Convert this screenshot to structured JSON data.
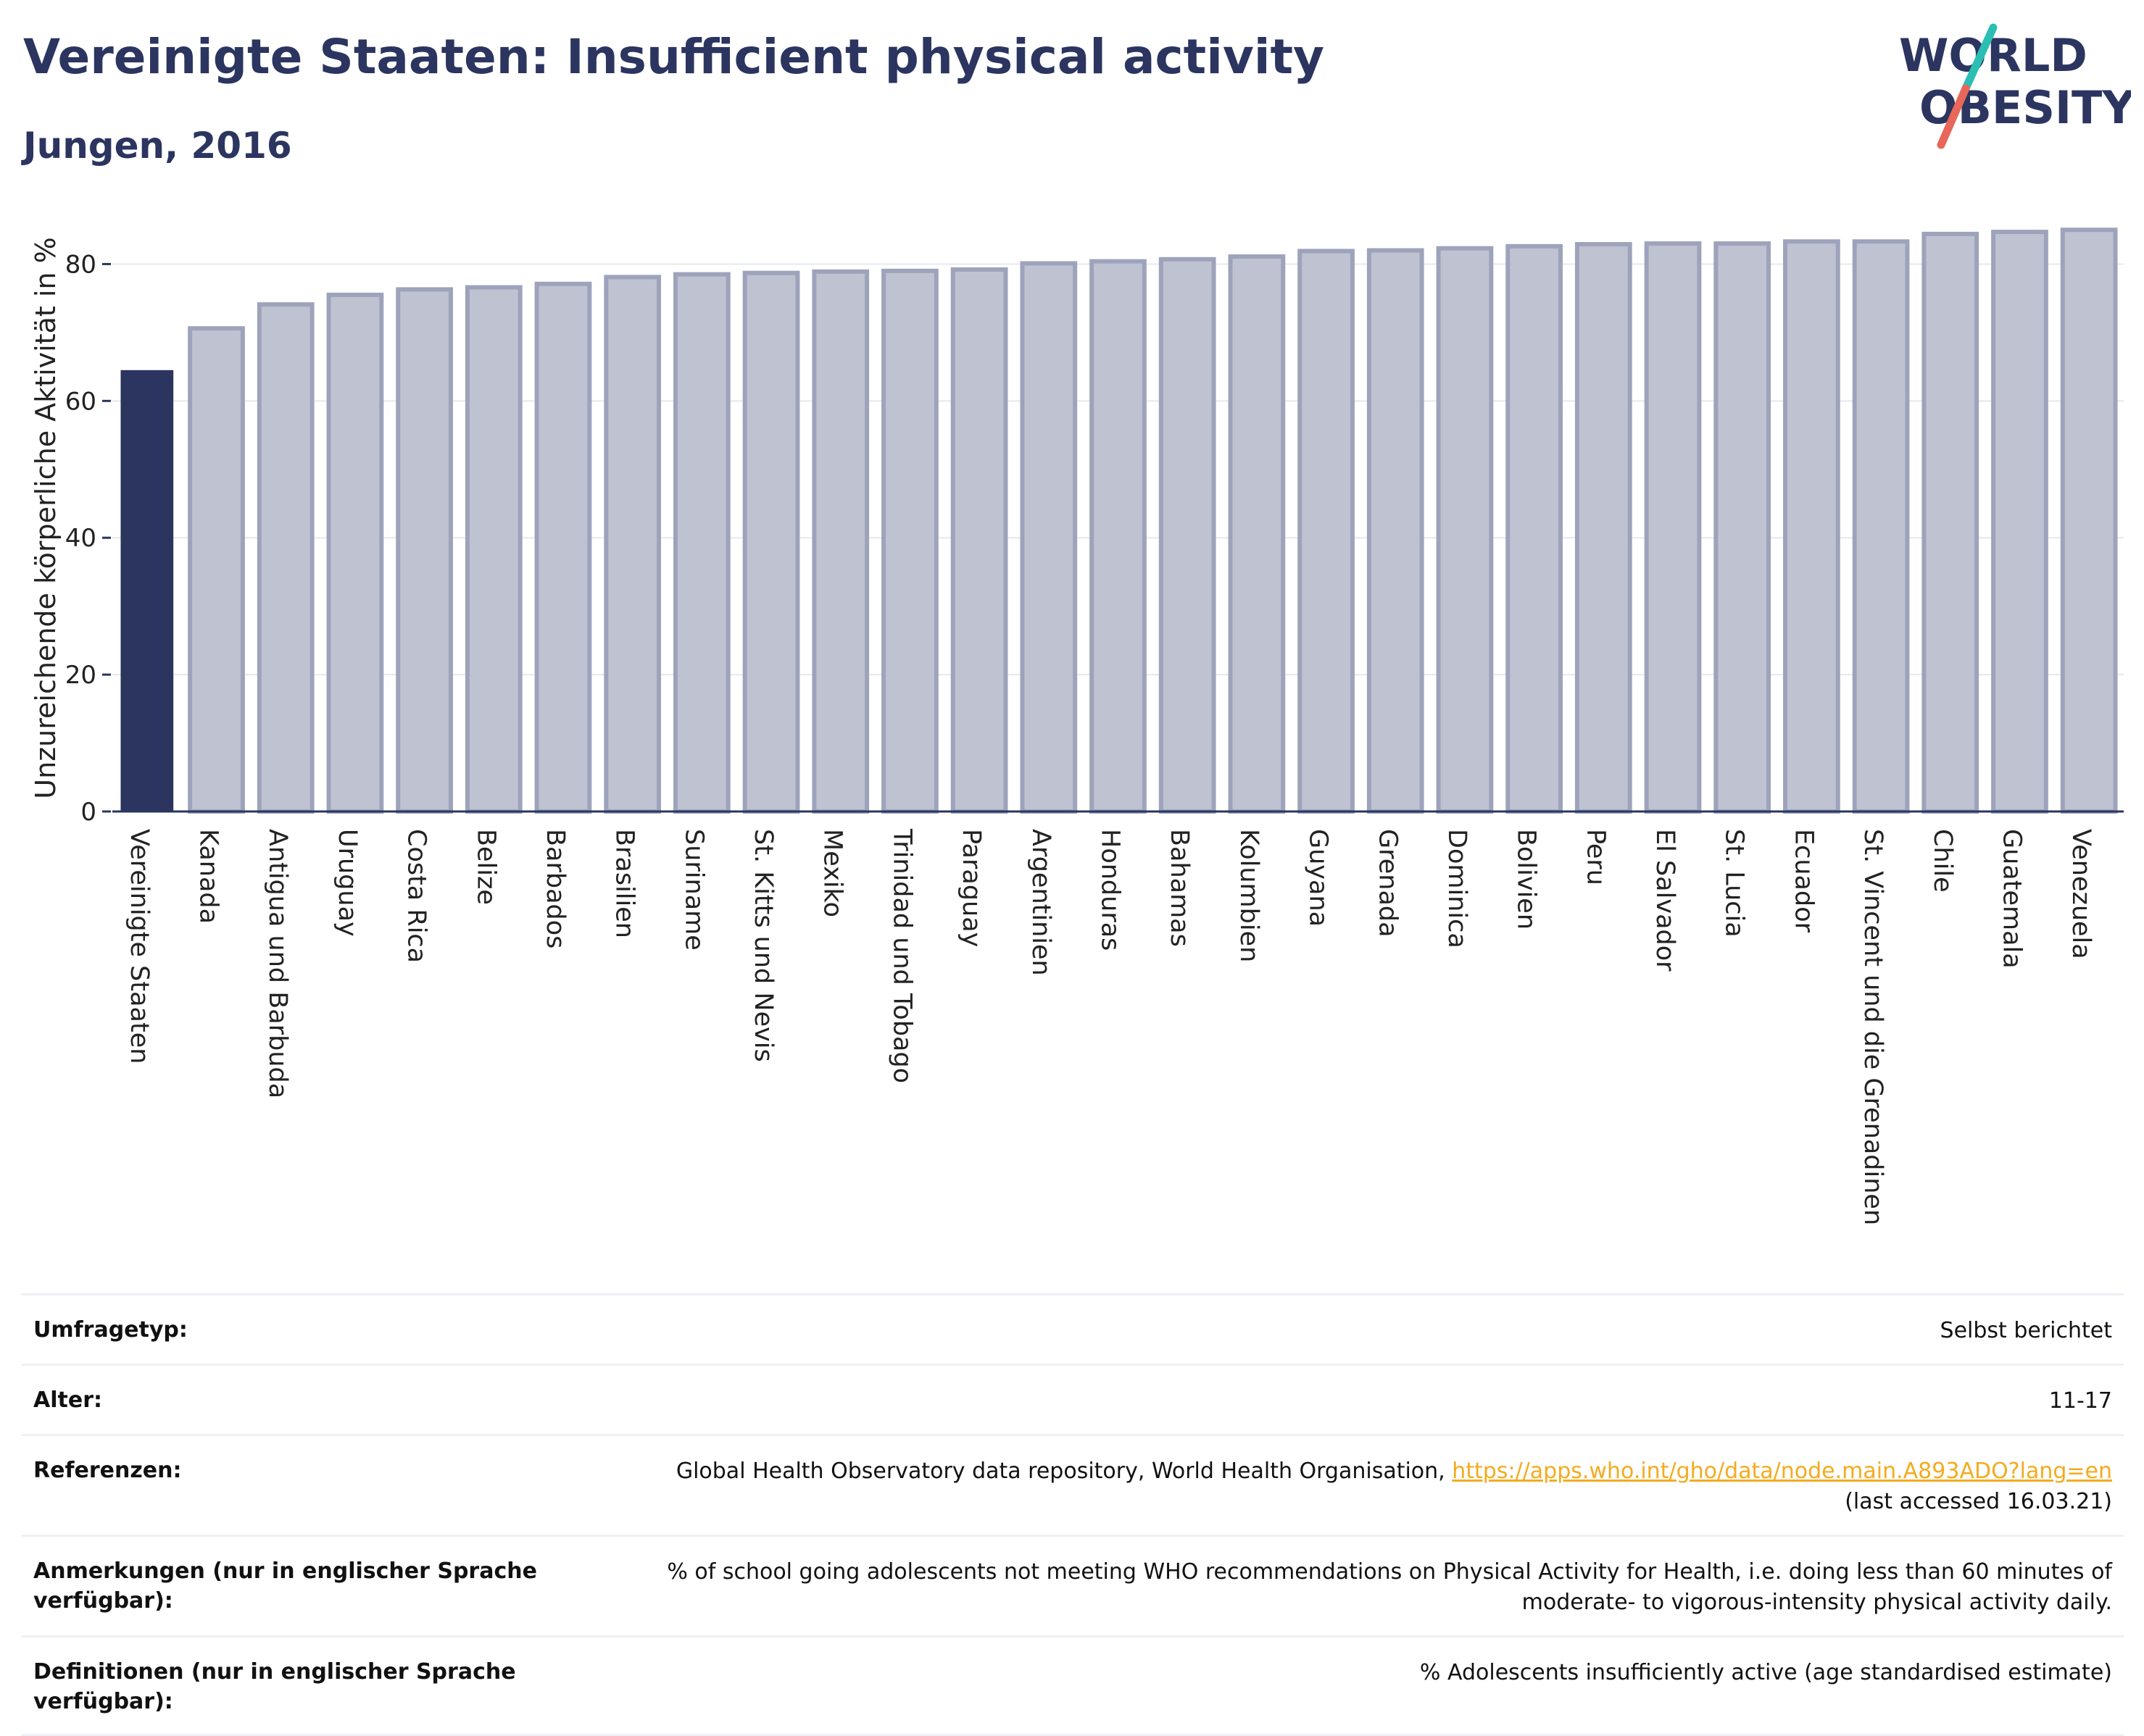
{
  "header": {
    "title": "Vereinigte Staaten: Insufficient physical activity",
    "subtitle": "Jungen, 2016"
  },
  "logo": {
    "line1": "WORLD",
    "line2": "OBESITY",
    "colors": {
      "text": "#2b3560",
      "slash_top": "#2bbfb3",
      "slash_bottom": "#e8675a"
    }
  },
  "colors": {
    "highlight_bar": "#2b3560",
    "other_bar_fill": "#bfc3d1",
    "other_bar_stroke": "#9da3bb",
    "gridline": "#e6e8ee",
    "link": "#f4ab1e"
  },
  "chart_data": {
    "type": "bar",
    "ylabel": "Unzureichende körperliche Aktivität in %",
    "ylim": [
      0,
      90
    ],
    "yticks": [
      0,
      20,
      40,
      60,
      80
    ],
    "grid": true,
    "highlight": "Vereinigte Staaten",
    "categories": [
      "Vereinigte Staaten",
      "Kanada",
      "Antigua und Barbuda",
      "Uruguay",
      "Costa Rica",
      "Belize",
      "Barbados",
      "Brasilien",
      "Suriname",
      "St. Kitts und Nevis",
      "Mexiko",
      "Trinidad und Tobago",
      "Paraguay",
      "Argentinien",
      "Honduras",
      "Bahamas",
      "Kolumbien",
      "Guyana",
      "Grenada",
      "Dominica",
      "Bolivien",
      "Peru",
      "El Salvador",
      "St. Lucia",
      "Ecuador",
      "St. Vincent und die Grenadinen",
      "Chile",
      "Guatemala",
      "Venezuela"
    ],
    "values": [
      64.5,
      70.6,
      74.1,
      75.5,
      76.3,
      76.6,
      77.1,
      78.1,
      78.5,
      78.7,
      78.9,
      79.0,
      79.2,
      80.1,
      80.4,
      80.7,
      81.1,
      81.9,
      82.0,
      82.3,
      82.6,
      82.9,
      83.0,
      83.0,
      83.3,
      83.3,
      84.4,
      84.7,
      85.0
    ]
  },
  "info": [
    {
      "label": "Umfragetyp:",
      "value": "Selbst berichtet"
    },
    {
      "label": "Alter:",
      "value": "11-17"
    },
    {
      "label": "Referenzen:",
      "value": "Global Health Observatory data repository, World Health Organisation,",
      "link": "https://apps.who.int/gho/data/node.main.A893ADO?lang=en",
      "value2": "(last accessed 16.03.21)"
    },
    {
      "label": "Anmerkungen (nur in englischer Sprache verfügbar):",
      "value": "% of school going adolescents not meeting WHO recommendations on Physical Activity for Health, i.e. doing less than 60 minutes of moderate- to vigorous-intensity physical activity daily."
    },
    {
      "label": "Definitionen (nur in englischer Sprache verfügbar):",
      "value": "% Adolescents insufficiently active (age standardised estimate)"
    }
  ]
}
